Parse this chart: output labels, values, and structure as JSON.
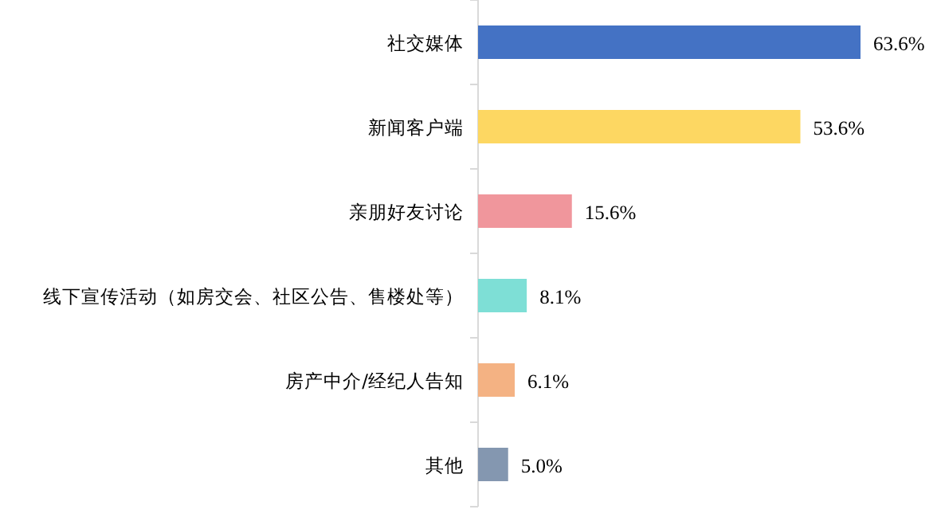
{
  "chart_data": {
    "type": "bar",
    "orientation": "horizontal",
    "categories": [
      "社交媒体",
      "新闻客户端",
      "亲朋好友讨论",
      "线下宣传活动（如房交会、社区公告、售楼处等）",
      "房产中介/经纪人告知",
      "其他"
    ],
    "values": [
      63.6,
      53.6,
      15.6,
      8.1,
      6.1,
      5.0
    ],
    "colors": [
      "#4472c4",
      "#fdd762",
      "#f0969c",
      "#7edfd6",
      "#f4b283",
      "#8497b0"
    ],
    "value_labels": [
      "63.6%",
      "53.6%",
      "15.6%",
      "8.1%",
      "6.1%",
      "5.0%"
    ]
  }
}
